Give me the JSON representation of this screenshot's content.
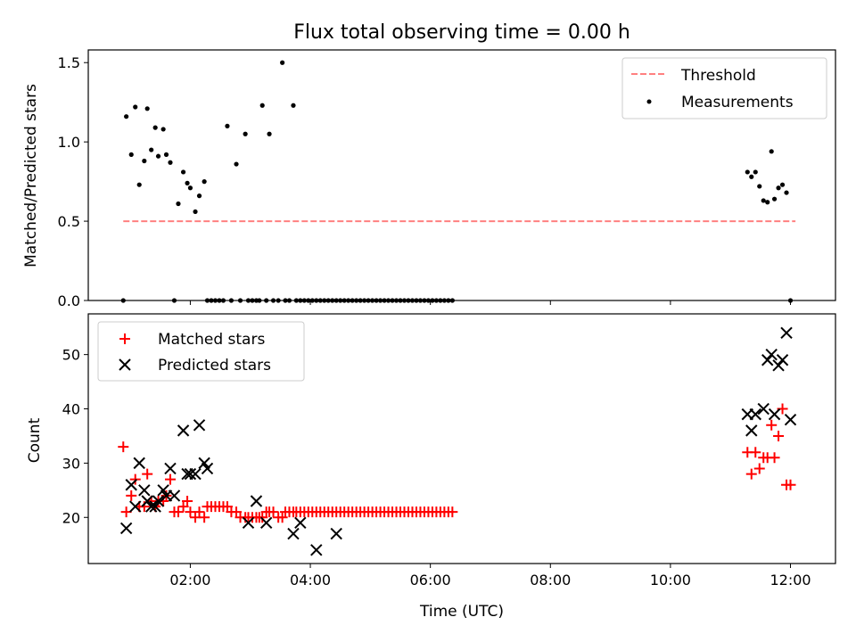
{
  "chart_data": [
    {
      "type": "scatter",
      "title": "Flux total observing time = 0.00 h",
      "xlabel": "",
      "ylabel": "Matched/Predicted stars",
      "ylim": [
        0,
        1.58
      ],
      "yticks": [
        0.0,
        0.5,
        1.0,
        1.5
      ],
      "ytick_labels": [
        "0.0",
        "0.5",
        "1.0",
        "1.5"
      ],
      "legend": {
        "placement": "top-right"
      },
      "threshold": {
        "name": "Threshold",
        "value": 0.5,
        "x_start": "00:53",
        "x_end": "12:05",
        "color": "#ff8080"
      },
      "series": [
        {
          "name": "Measurements",
          "color": "#000000",
          "points": [
            [
              "00:53",
              0.0
            ],
            [
              "00:56",
              1.16
            ],
            [
              "01:01",
              0.92
            ],
            [
              "01:05",
              1.22
            ],
            [
              "01:09",
              0.73
            ],
            [
              "01:14",
              0.88
            ],
            [
              "01:17",
              1.21
            ],
            [
              "01:21",
              0.95
            ],
            [
              "01:25",
              1.09
            ],
            [
              "01:28",
              0.91
            ],
            [
              "01:33",
              1.08
            ],
            [
              "01:36",
              0.92
            ],
            [
              "01:40",
              0.87
            ],
            [
              "01:44",
              0.0
            ],
            [
              "01:48",
              0.61
            ],
            [
              "01:53",
              0.81
            ],
            [
              "01:57",
              0.74
            ],
            [
              "02:00",
              0.71
            ],
            [
              "02:05",
              0.56
            ],
            [
              "02:09",
              0.66
            ],
            [
              "02:14",
              0.75
            ],
            [
              "02:17",
              0.0
            ],
            [
              "02:21",
              0.0
            ],
            [
              "02:25",
              0.0
            ],
            [
              "02:29",
              0.0
            ],
            [
              "02:33",
              0.0
            ],
            [
              "02:37",
              1.1
            ],
            [
              "02:41",
              0.0
            ],
            [
              "02:46",
              0.86
            ],
            [
              "02:50",
              0.0
            ],
            [
              "02:55",
              1.05
            ],
            [
              "02:58",
              0.0
            ],
            [
              "03:02",
              0.0
            ],
            [
              "03:06",
              0.0
            ],
            [
              "03:09",
              0.0
            ],
            [
              "03:12",
              1.23
            ],
            [
              "03:16",
              0.0
            ],
            [
              "03:19",
              1.05
            ],
            [
              "03:23",
              0.0
            ],
            [
              "03:28",
              0.0
            ],
            [
              "03:32",
              1.5
            ],
            [
              "03:35",
              0.0
            ],
            [
              "03:39",
              0.0
            ],
            [
              "03:43",
              1.23
            ],
            [
              "03:46",
              0.0
            ],
            [
              "03:50",
              0.0
            ],
            [
              "03:54",
              0.0
            ],
            [
              "03:58",
              0.0
            ],
            [
              "04:02",
              0.0
            ],
            [
              "04:06",
              0.0
            ],
            [
              "04:10",
              0.0
            ],
            [
              "04:14",
              0.0
            ],
            [
              "04:18",
              0.0
            ],
            [
              "04:22",
              0.0
            ],
            [
              "04:26",
              0.0
            ],
            [
              "04:30",
              0.0
            ],
            [
              "04:34",
              0.0
            ],
            [
              "04:38",
              0.0
            ],
            [
              "04:42",
              0.0
            ],
            [
              "04:46",
              0.0
            ],
            [
              "04:50",
              0.0
            ],
            [
              "04:54",
              0.0
            ],
            [
              "04:58",
              0.0
            ],
            [
              "05:02",
              0.0
            ],
            [
              "05:06",
              0.0
            ],
            [
              "05:10",
              0.0
            ],
            [
              "05:14",
              0.0
            ],
            [
              "05:18",
              0.0
            ],
            [
              "05:22",
              0.0
            ],
            [
              "05:26",
              0.0
            ],
            [
              "05:30",
              0.0
            ],
            [
              "05:34",
              0.0
            ],
            [
              "05:38",
              0.0
            ],
            [
              "05:42",
              0.0
            ],
            [
              "05:46",
              0.0
            ],
            [
              "05:50",
              0.0
            ],
            [
              "05:54",
              0.0
            ],
            [
              "05:58",
              0.0
            ],
            [
              "06:02",
              0.0
            ],
            [
              "06:06",
              0.0
            ],
            [
              "06:10",
              0.0
            ],
            [
              "06:14",
              0.0
            ],
            [
              "06:18",
              0.0
            ],
            [
              "06:22",
              0.0
            ],
            [
              "11:17",
              0.81
            ],
            [
              "11:21",
              0.78
            ],
            [
              "11:25",
              0.81
            ],
            [
              "11:29",
              0.72
            ],
            [
              "11:33",
              0.63
            ],
            [
              "11:37",
              0.62
            ],
            [
              "11:41",
              0.94
            ],
            [
              "11:44",
              0.64
            ],
            [
              "11:48",
              0.71
            ],
            [
              "11:52",
              0.73
            ],
            [
              "11:56",
              0.68
            ],
            [
              "12:00",
              0.0
            ]
          ]
        }
      ]
    },
    {
      "type": "scatter",
      "title": "",
      "xlabel": "Time (UTC)",
      "ylabel": "Count",
      "ylim": [
        11.5,
        57.5
      ],
      "yticks": [
        20,
        30,
        40,
        50
      ],
      "ytick_labels": [
        "20",
        "30",
        "40",
        "50"
      ],
      "xlim": [
        "00:18",
        "12:45"
      ],
      "xticks": [
        "02:00",
        "04:00",
        "06:00",
        "08:00",
        "10:00",
        "12:00"
      ],
      "xtick_labels": [
        "02:00",
        "04:00",
        "06:00",
        "08:00",
        "10:00",
        "12:00"
      ],
      "legend": {
        "placement": "top-left"
      },
      "series": [
        {
          "name": "Matched stars",
          "marker": "+",
          "color": "#ff0000",
          "points": [
            [
              "00:53",
              33
            ],
            [
              "00:56",
              21
            ],
            [
              "01:01",
              24
            ],
            [
              "01:05",
              27
            ],
            [
              "01:09",
              22
            ],
            [
              "01:14",
              22
            ],
            [
              "01:17",
              28
            ],
            [
              "01:21",
              23
            ],
            [
              "01:25",
              22
            ],
            [
              "01:28",
              23
            ],
            [
              "01:33",
              23
            ],
            [
              "01:36",
              24
            ],
            [
              "01:40",
              27
            ],
            [
              "01:44",
              21
            ],
            [
              "01:48",
              21
            ],
            [
              "01:53",
              22
            ],
            [
              "01:57",
              23
            ],
            [
              "02:00",
              21
            ],
            [
              "02:05",
              20
            ],
            [
              "02:09",
              21
            ],
            [
              "02:14",
              20
            ],
            [
              "02:17",
              22
            ],
            [
              "02:21",
              22
            ],
            [
              "02:25",
              22
            ],
            [
              "02:29",
              22
            ],
            [
              "02:33",
              22
            ],
            [
              "02:37",
              22
            ],
            [
              "02:41",
              21
            ],
            [
              "02:46",
              21
            ],
            [
              "02:50",
              20
            ],
            [
              "02:55",
              20
            ],
            [
              "02:58",
              20
            ],
            [
              "03:02",
              20
            ],
            [
              "03:06",
              20
            ],
            [
              "03:09",
              20
            ],
            [
              "03:12",
              20
            ],
            [
              "03:16",
              21
            ],
            [
              "03:19",
              21
            ],
            [
              "03:23",
              21
            ],
            [
              "03:28",
              20
            ],
            [
              "03:32",
              20
            ],
            [
              "03:35",
              21
            ],
            [
              "03:39",
              21
            ],
            [
              "03:43",
              21
            ],
            [
              "03:46",
              21
            ],
            [
              "03:50",
              21
            ],
            [
              "03:54",
              21
            ],
            [
              "03:58",
              21
            ],
            [
              "04:02",
              21
            ],
            [
              "04:06",
              21
            ],
            [
              "04:10",
              21
            ],
            [
              "04:14",
              21
            ],
            [
              "04:18",
              21
            ],
            [
              "04:22",
              21
            ],
            [
              "04:26",
              21
            ],
            [
              "04:30",
              21
            ],
            [
              "04:34",
              21
            ],
            [
              "04:38",
              21
            ],
            [
              "04:42",
              21
            ],
            [
              "04:46",
              21
            ],
            [
              "04:50",
              21
            ],
            [
              "04:54",
              21
            ],
            [
              "04:58",
              21
            ],
            [
              "05:02",
              21
            ],
            [
              "05:06",
              21
            ],
            [
              "05:10",
              21
            ],
            [
              "05:14",
              21
            ],
            [
              "05:18",
              21
            ],
            [
              "05:22",
              21
            ],
            [
              "05:26",
              21
            ],
            [
              "05:30",
              21
            ],
            [
              "05:34",
              21
            ],
            [
              "05:38",
              21
            ],
            [
              "05:42",
              21
            ],
            [
              "05:46",
              21
            ],
            [
              "05:50",
              21
            ],
            [
              "05:54",
              21
            ],
            [
              "05:58",
              21
            ],
            [
              "06:02",
              21
            ],
            [
              "06:06",
              21
            ],
            [
              "06:10",
              21
            ],
            [
              "06:14",
              21
            ],
            [
              "06:18",
              21
            ],
            [
              "06:22",
              21
            ],
            [
              "11:17",
              32
            ],
            [
              "11:21",
              28
            ],
            [
              "11:25",
              32
            ],
            [
              "11:29",
              29
            ],
            [
              "11:33",
              31
            ],
            [
              "11:37",
              31
            ],
            [
              "11:41",
              37
            ],
            [
              "11:44",
              31
            ],
            [
              "11:48",
              35
            ],
            [
              "11:52",
              40
            ],
            [
              "11:56",
              26
            ],
            [
              "12:00",
              26
            ]
          ]
        },
        {
          "name": "Predicted stars",
          "marker": "x",
          "color": "#000000",
          "points": [
            [
              "00:56",
              18
            ],
            [
              "01:01",
              26
            ],
            [
              "01:05",
              22
            ],
            [
              "01:09",
              30
            ],
            [
              "01:14",
              25
            ],
            [
              "01:17",
              23
            ],
            [
              "01:21",
              22
            ],
            [
              "01:25",
              22
            ],
            [
              "01:28",
              23
            ],
            [
              "01:33",
              25
            ],
            [
              "01:36",
              24
            ],
            [
              "01:40",
              29
            ],
            [
              "01:44",
              24
            ],
            [
              "01:53",
              36
            ],
            [
              "01:57",
              28
            ],
            [
              "02:00",
              28
            ],
            [
              "02:05",
              28
            ],
            [
              "02:09",
              37
            ],
            [
              "02:14",
              30
            ],
            [
              "02:17",
              29
            ],
            [
              "02:58",
              19
            ],
            [
              "03:06",
              23
            ],
            [
              "03:16",
              19
            ],
            [
              "03:43",
              17
            ],
            [
              "03:50",
              19
            ],
            [
              "04:06",
              14
            ],
            [
              "04:26",
              17
            ],
            [
              "11:17",
              39
            ],
            [
              "11:21",
              36
            ],
            [
              "11:25",
              39
            ],
            [
              "11:33",
              40
            ],
            [
              "11:37",
              49
            ],
            [
              "11:41",
              50
            ],
            [
              "11:44",
              39
            ],
            [
              "11:48",
              48
            ],
            [
              "11:52",
              49
            ],
            [
              "11:56",
              54
            ],
            [
              "12:00",
              38
            ]
          ]
        }
      ]
    }
  ]
}
